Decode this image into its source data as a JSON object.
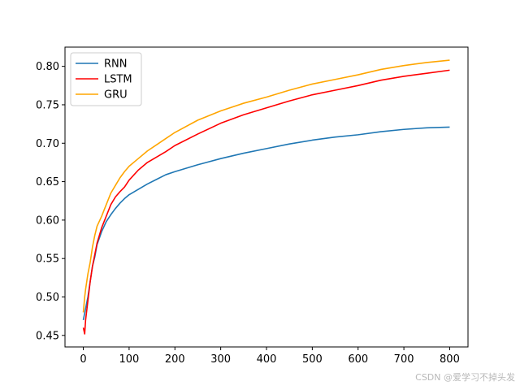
{
  "chart_data": {
    "type": "line",
    "title": "",
    "xlabel": "",
    "ylabel": "",
    "xlim": [
      -40,
      840
    ],
    "ylim": [
      0.435,
      0.825
    ],
    "xticks": [
      0,
      100,
      200,
      300,
      400,
      500,
      600,
      700,
      800
    ],
    "yticks": [
      0.45,
      0.5,
      0.55,
      0.6,
      0.65,
      0.7,
      0.75,
      0.8
    ],
    "grid": false,
    "legend_position": "top-left",
    "series": [
      {
        "name": "RNN",
        "color": "#1f77b4",
        "points": [
          [
            0,
            0.47
          ],
          [
            5,
            0.485
          ],
          [
            10,
            0.5
          ],
          [
            15,
            0.52
          ],
          [
            20,
            0.54
          ],
          [
            25,
            0.552
          ],
          [
            30,
            0.568
          ],
          [
            40,
            0.585
          ],
          [
            50,
            0.598
          ],
          [
            60,
            0.607
          ],
          [
            70,
            0.615
          ],
          [
            80,
            0.622
          ],
          [
            90,
            0.628
          ],
          [
            100,
            0.633
          ],
          [
            120,
            0.64
          ],
          [
            140,
            0.647
          ],
          [
            160,
            0.653
          ],
          [
            180,
            0.659
          ],
          [
            200,
            0.663
          ],
          [
            250,
            0.672
          ],
          [
            300,
            0.68
          ],
          [
            350,
            0.687
          ],
          [
            400,
            0.693
          ],
          [
            450,
            0.699
          ],
          [
            500,
            0.704
          ],
          [
            550,
            0.708
          ],
          [
            600,
            0.711
          ],
          [
            650,
            0.715
          ],
          [
            700,
            0.718
          ],
          [
            750,
            0.72
          ],
          [
            800,
            0.721
          ]
        ]
      },
      {
        "name": "LSTM",
        "color": "#ff0000",
        "points": [
          [
            0,
            0.46
          ],
          [
            3,
            0.452
          ],
          [
            5,
            0.47
          ],
          [
            10,
            0.495
          ],
          [
            15,
            0.52
          ],
          [
            20,
            0.54
          ],
          [
            25,
            0.555
          ],
          [
            30,
            0.57
          ],
          [
            40,
            0.59
          ],
          [
            50,
            0.605
          ],
          [
            60,
            0.62
          ],
          [
            70,
            0.63
          ],
          [
            80,
            0.637
          ],
          [
            90,
            0.643
          ],
          [
            100,
            0.652
          ],
          [
            120,
            0.665
          ],
          [
            140,
            0.675
          ],
          [
            160,
            0.682
          ],
          [
            180,
            0.689
          ],
          [
            200,
            0.697
          ],
          [
            250,
            0.712
          ],
          [
            300,
            0.726
          ],
          [
            350,
            0.737
          ],
          [
            400,
            0.746
          ],
          [
            450,
            0.755
          ],
          [
            500,
            0.763
          ],
          [
            550,
            0.769
          ],
          [
            600,
            0.775
          ],
          [
            650,
            0.782
          ],
          [
            700,
            0.787
          ],
          [
            750,
            0.791
          ],
          [
            800,
            0.795
          ]
        ]
      },
      {
        "name": "GRU",
        "color": "#ffa500",
        "points": [
          [
            0,
            0.48
          ],
          [
            3,
            0.5
          ],
          [
            5,
            0.51
          ],
          [
            10,
            0.53
          ],
          [
            15,
            0.545
          ],
          [
            20,
            0.565
          ],
          [
            25,
            0.58
          ],
          [
            30,
            0.592
          ],
          [
            40,
            0.605
          ],
          [
            50,
            0.62
          ],
          [
            60,
            0.635
          ],
          [
            70,
            0.645
          ],
          [
            80,
            0.655
          ],
          [
            90,
            0.663
          ],
          [
            100,
            0.67
          ],
          [
            120,
            0.68
          ],
          [
            140,
            0.69
          ],
          [
            160,
            0.698
          ],
          [
            180,
            0.706
          ],
          [
            200,
            0.714
          ],
          [
            250,
            0.73
          ],
          [
            300,
            0.742
          ],
          [
            350,
            0.752
          ],
          [
            400,
            0.76
          ],
          [
            450,
            0.769
          ],
          [
            500,
            0.777
          ],
          [
            550,
            0.783
          ],
          [
            600,
            0.789
          ],
          [
            650,
            0.796
          ],
          [
            700,
            0.801
          ],
          [
            750,
            0.805
          ],
          [
            800,
            0.808
          ]
        ]
      }
    ]
  },
  "watermark": "CSDN @爱学习不掉头发"
}
